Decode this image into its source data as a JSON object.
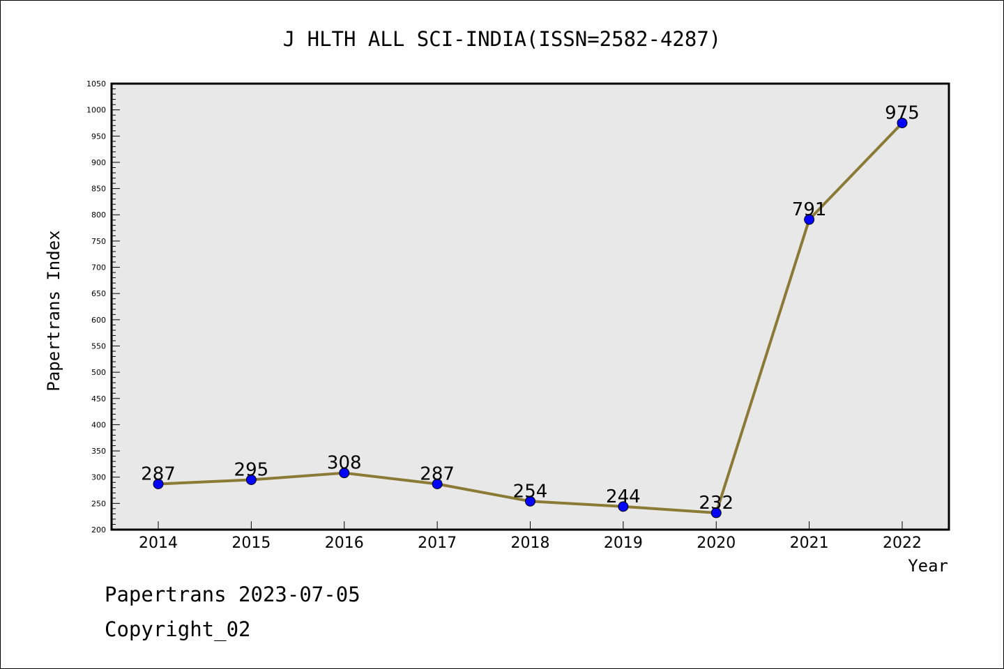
{
  "chart_data": {
    "type": "line",
    "title": "J HLTH ALL SCI-INDIA(ISSN=2582-4287)",
    "xlabel": "Year",
    "ylabel": "Papertrans Index",
    "categories": [
      "2014",
      "2015",
      "2016",
      "2017",
      "2018",
      "2019",
      "2020",
      "2021",
      "2022"
    ],
    "values": [
      287,
      295,
      308,
      287,
      254,
      244,
      232,
      791,
      975
    ],
    "data_labels": [
      "287",
      "295",
      "308",
      "287",
      "254",
      "244",
      "232",
      "791",
      "975"
    ],
    "ylim": [
      200,
      1050
    ],
    "ytick_step": 50,
    "yticks": [
      "200",
      "250",
      "300",
      "350",
      "400",
      "450",
      "500",
      "550",
      "600",
      "650",
      "700",
      "750",
      "800",
      "850",
      "900",
      "950",
      "1000",
      "1050"
    ],
    "grid": false,
    "legend": "none",
    "colors": {
      "line": "#8b7a36",
      "marker": "#0000ff",
      "plot_background": "#e8e8e8"
    }
  },
  "footer": {
    "line1": "Papertrans 2023-07-05",
    "line2": "Copyright_02"
  }
}
